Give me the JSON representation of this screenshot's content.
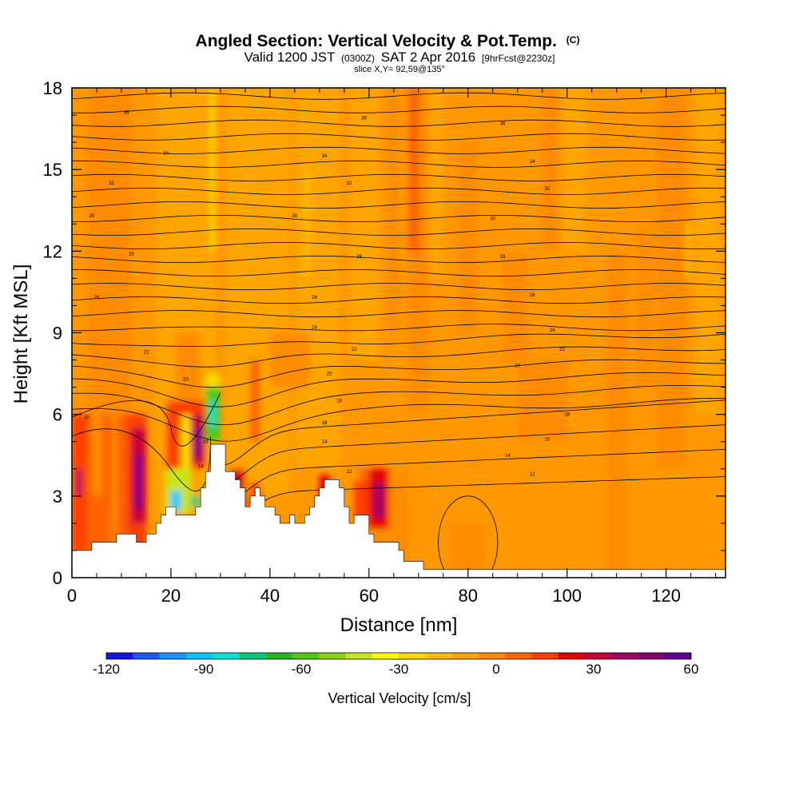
{
  "chart_data": {
    "type": "heatmap",
    "title": "Angled Section: Vertical Velocity & Pot.Temp.",
    "title_units": "(C)",
    "subtitle_valid": "Valid 1200 JST",
    "subtitle_utc": "(0300Z)",
    "subtitle_date": "SAT 2 Apr 2016",
    "subtitle_fcst": "[9hrFcst@2230z]",
    "subtitle_slice": "slice X,Y= 92,59@135°",
    "xlabel": "Distance [nm]",
    "ylabel": "Height [Kft MSL]",
    "xlim": [
      0,
      132
    ],
    "ylim": [
      0,
      18
    ],
    "x_ticks": [
      0,
      20,
      40,
      60,
      80,
      100,
      120
    ],
    "x_tick_labels": [
      "0",
      "20",
      "40",
      "60",
      "80",
      "100",
      "120"
    ],
    "y_ticks": [
      0,
      3,
      6,
      9,
      12,
      15,
      18
    ],
    "y_tick_labels": [
      "0",
      "3",
      "6",
      "9",
      "12",
      "15",
      "18"
    ],
    "colorbar": {
      "label": "Vertical Velocity [cm/s]",
      "min": -120,
      "max": 60,
      "tick_values": [
        -120,
        -90,
        -60,
        -30,
        0,
        30,
        60
      ],
      "tick_labels": [
        "-120",
        "-90",
        "-60",
        "-30",
        "0",
        "30",
        "60"
      ],
      "colors": [
        "#1414e6",
        "#1e5af0",
        "#1e90ff",
        "#00c8ff",
        "#00e6d2",
        "#00c878",
        "#28b428",
        "#50c814",
        "#8cd214",
        "#c8e614",
        "#ffff00",
        "#ffd700",
        "#ffbe00",
        "#ffa500",
        "#ff8c00",
        "#ff6400",
        "#ff3c00",
        "#e60000",
        "#c8003c",
        "#a00064",
        "#82006e",
        "#640096"
      ]
    },
    "terrain": [
      [
        0,
        1.0
      ],
      [
        4,
        1.0
      ],
      [
        4,
        1.3
      ],
      [
        9,
        1.3
      ],
      [
        9,
        1.6
      ],
      [
        13,
        1.6
      ],
      [
        13,
        1.3
      ],
      [
        15,
        1.3
      ],
      [
        15,
        1.6
      ],
      [
        17,
        1.6
      ],
      [
        17,
        2.0
      ],
      [
        18,
        2.0
      ],
      [
        18,
        2.3
      ],
      [
        19,
        2.3
      ],
      [
        19,
        2.6
      ],
      [
        21,
        2.6
      ],
      [
        21,
        2.3
      ],
      [
        25,
        2.3
      ],
      [
        25,
        2.6
      ],
      [
        26,
        2.6
      ],
      [
        26,
        3.3
      ],
      [
        27,
        3.3
      ],
      [
        27,
        3.9
      ],
      [
        28,
        3.9
      ],
      [
        28,
        4.9
      ],
      [
        31,
        4.9
      ],
      [
        31,
        3.9
      ],
      [
        33,
        3.9
      ],
      [
        33,
        3.6
      ],
      [
        34,
        3.6
      ],
      [
        34,
        3.3
      ],
      [
        35,
        3.3
      ],
      [
        35,
        2.6
      ],
      [
        36,
        2.6
      ],
      [
        36,
        3.0
      ],
      [
        37,
        3.0
      ],
      [
        37,
        3.3
      ],
      [
        38,
        3.3
      ],
      [
        38,
        3.0
      ],
      [
        39,
        3.0
      ],
      [
        39,
        2.6
      ],
      [
        41,
        2.6
      ],
      [
        41,
        2.3
      ],
      [
        42,
        2.3
      ],
      [
        42,
        2.0
      ],
      [
        44,
        2.0
      ],
      [
        44,
        2.3
      ],
      [
        45,
        2.3
      ],
      [
        45,
        2.0
      ],
      [
        47,
        2.0
      ],
      [
        47,
        2.3
      ],
      [
        48,
        2.3
      ],
      [
        48,
        2.6
      ],
      [
        49,
        2.6
      ],
      [
        49,
        3.0
      ],
      [
        50,
        3.0
      ],
      [
        50,
        3.3
      ],
      [
        51,
        3.3
      ],
      [
        51,
        3.6
      ],
      [
        54,
        3.6
      ],
      [
        54,
        3.3
      ],
      [
        55,
        3.3
      ],
      [
        55,
        2.6
      ],
      [
        56,
        2.6
      ],
      [
        56,
        2.0
      ],
      [
        57,
        2.0
      ],
      [
        57,
        2.3
      ],
      [
        60,
        2.3
      ],
      [
        60,
        1.6
      ],
      [
        61,
        1.6
      ],
      [
        61,
        1.3
      ],
      [
        66,
        1.3
      ],
      [
        66,
        1.0
      ],
      [
        67,
        1.0
      ],
      [
        67,
        0.6
      ],
      [
        71,
        0.6
      ],
      [
        71,
        0.3
      ],
      [
        132,
        0.3
      ]
    ],
    "theta_contour_labels": [
      {
        "x": 11,
        "y": 17.1,
        "text": "36"
      },
      {
        "x": 59,
        "y": 16.9,
        "text": "36"
      },
      {
        "x": 87,
        "y": 16.7,
        "text": "36"
      },
      {
        "x": 19,
        "y": 15.6,
        "text": "34"
      },
      {
        "x": 51,
        "y": 15.5,
        "text": "34"
      },
      {
        "x": 93,
        "y": 15.3,
        "text": "34"
      },
      {
        "x": 8,
        "y": 14.5,
        "text": "32"
      },
      {
        "x": 56,
        "y": 14.5,
        "text": "32"
      },
      {
        "x": 96,
        "y": 14.3,
        "text": "32"
      },
      {
        "x": 4,
        "y": 13.3,
        "text": "30"
      },
      {
        "x": 45,
        "y": 13.3,
        "text": "30"
      },
      {
        "x": 85,
        "y": 13.2,
        "text": "30"
      },
      {
        "x": 12,
        "y": 11.9,
        "text": "28"
      },
      {
        "x": 58,
        "y": 11.8,
        "text": "28"
      },
      {
        "x": 87,
        "y": 11.8,
        "text": "28"
      },
      {
        "x": 5,
        "y": 10.3,
        "text": "26"
      },
      {
        "x": 49,
        "y": 10.3,
        "text": "26"
      },
      {
        "x": 93,
        "y": 10.4,
        "text": "26"
      },
      {
        "x": 49,
        "y": 9.2,
        "text": "24"
      },
      {
        "x": 97,
        "y": 9.1,
        "text": "24"
      },
      {
        "x": 15,
        "y": 8.3,
        "text": "22"
      },
      {
        "x": 57,
        "y": 8.4,
        "text": "22"
      },
      {
        "x": 99,
        "y": 8.4,
        "text": "22"
      },
      {
        "x": 23,
        "y": 7.3,
        "text": "20"
      },
      {
        "x": 52,
        "y": 7.5,
        "text": "20"
      },
      {
        "x": 90,
        "y": 7.8,
        "text": "20"
      },
      {
        "x": 54,
        "y": 6.5,
        "text": "18"
      },
      {
        "x": 100,
        "y": 6.0,
        "text": "18"
      },
      {
        "x": 3,
        "y": 5.9,
        "text": "20"
      },
      {
        "x": 51,
        "y": 5.7,
        "text": "16"
      },
      {
        "x": 96,
        "y": 5.1,
        "text": "16"
      },
      {
        "x": 27,
        "y": 5.0,
        "text": "16"
      },
      {
        "x": 51,
        "y": 5.0,
        "text": "14"
      },
      {
        "x": 88,
        "y": 4.5,
        "text": "14"
      },
      {
        "x": 26,
        "y": 4.1,
        "text": "14"
      },
      {
        "x": 56,
        "y": 3.9,
        "text": "12"
      },
      {
        "x": 93,
        "y": 3.8,
        "text": "12"
      }
    ]
  }
}
